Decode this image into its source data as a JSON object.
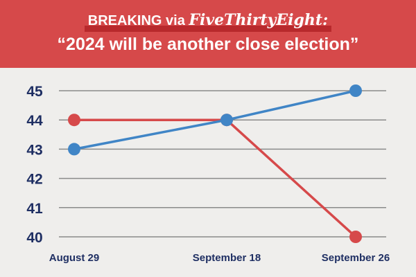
{
  "header": {
    "kicker_prefix": "BREAKING via ",
    "kicker_brand": "FiveThirtyEight:",
    "headline": "“2024 will be another close election”",
    "bg_color": "#d6494a",
    "highlight_color": "#b8292c"
  },
  "chart_data": {
    "type": "line",
    "categories": [
      "August 29",
      "September 18",
      "September 26"
    ],
    "yticks": [
      "45",
      "44",
      "43",
      "42",
      "41",
      "40"
    ],
    "ylim": [
      40,
      45
    ],
    "grid": true,
    "legend": "none",
    "series": [
      {
        "color": "#d6494a",
        "values": [
          44,
          44,
          40
        ]
      },
      {
        "color": "#4085c6",
        "values": [
          43,
          44,
          45
        ]
      }
    ]
  }
}
